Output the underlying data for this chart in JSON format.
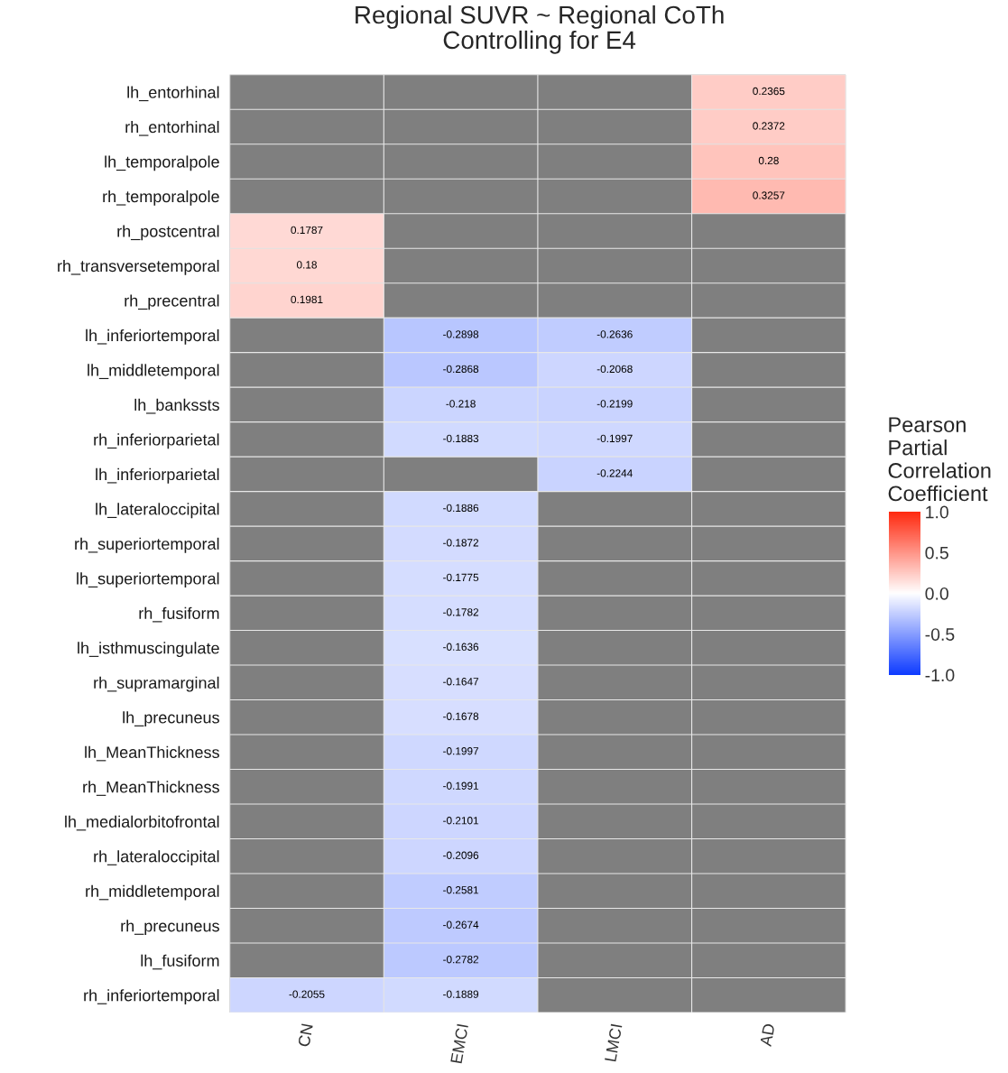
{
  "chart_data": {
    "type": "heatmap",
    "title": "Regional SUVR ~ Regional CoTh\nControlling for E4",
    "clabel": "Pearson\nPartial\nCorrelation\nCoefficient",
    "categories": [
      "CN",
      "EMCI",
      "LMCI",
      "AD"
    ],
    "y_categories": [
      "lh_entorhinal",
      "rh_entorhinal",
      "lh_temporalpole",
      "rh_temporalpole",
      "rh_postcentral",
      "rh_transversetemporal",
      "rh_precentral",
      "lh_inferiortemporal",
      "lh_middletemporal",
      "lh_bankssts",
      "rh_inferiorparietal",
      "lh_inferiorparietal",
      "lh_lateraloccipital",
      "rh_superiortemporal",
      "lh_superiortemporal",
      "rh_fusiform",
      "lh_isthmuscingulate",
      "rh_supramarginal",
      "lh_precuneus",
      "lh_MeanThickness",
      "rh_MeanThickness",
      "lh_medialorbitofrontal",
      "rh_lateraloccipital",
      "rh_middletemporal",
      "rh_precuneus",
      "lh_fusiform",
      "rh_inferiortemporal"
    ],
    "cells": [
      [
        null,
        null,
        null,
        0.2365
      ],
      [
        null,
        null,
        null,
        0.2372
      ],
      [
        null,
        null,
        null,
        0.28
      ],
      [
        null,
        null,
        null,
        0.3257
      ],
      [
        0.1787,
        null,
        null,
        null
      ],
      [
        0.18,
        null,
        null,
        null
      ],
      [
        0.1981,
        null,
        null,
        null
      ],
      [
        null,
        -0.2898,
        -0.2636,
        null
      ],
      [
        null,
        -0.2868,
        -0.2068,
        null
      ],
      [
        null,
        -0.218,
        -0.2199,
        null
      ],
      [
        null,
        -0.1883,
        -0.1997,
        null
      ],
      [
        null,
        null,
        -0.2244,
        null
      ],
      [
        null,
        -0.1886,
        null,
        null
      ],
      [
        null,
        -0.1872,
        null,
        null
      ],
      [
        null,
        -0.1775,
        null,
        null
      ],
      [
        null,
        -0.1782,
        null,
        null
      ],
      [
        null,
        -0.1636,
        null,
        null
      ],
      [
        null,
        -0.1647,
        null,
        null
      ],
      [
        null,
        -0.1678,
        null,
        null
      ],
      [
        null,
        -0.1997,
        null,
        null
      ],
      [
        null,
        -0.1991,
        null,
        null
      ],
      [
        null,
        -0.2101,
        null,
        null
      ],
      [
        null,
        -0.2096,
        null,
        null
      ],
      [
        null,
        -0.2581,
        null,
        null
      ],
      [
        null,
        -0.2674,
        null,
        null
      ],
      [
        null,
        -0.2782,
        null,
        null
      ],
      [
        -0.2055,
        -0.1889,
        null,
        null
      ]
    ],
    "data_labels": true,
    "clim": [
      -1,
      1
    ],
    "cticks": [
      {
        "value": -1,
        "label": "-1.0"
      },
      {
        "value": -0.5,
        "label": "-0.5"
      },
      {
        "value": 0,
        "label": "0.0"
      },
      {
        "value": 0.5,
        "label": "0.5"
      },
      {
        "value": 1,
        "label": "1.0"
      }
    ]
  }
}
